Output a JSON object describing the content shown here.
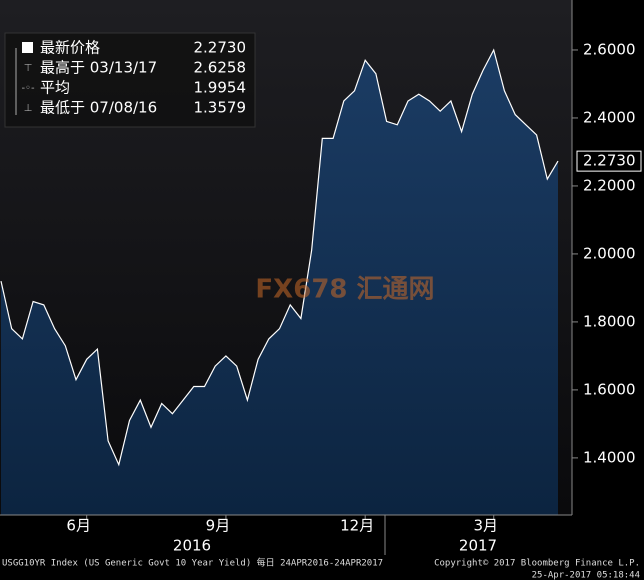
{
  "chart_data": {
    "type": "area",
    "series": [
      {
        "name": "USGG10YR Index",
        "color": "#ffffff",
        "fill": "#12305a",
        "values": [
          1.92,
          1.78,
          1.75,
          1.86,
          1.85,
          1.78,
          1.73,
          1.63,
          1.69,
          1.72,
          1.45,
          1.38,
          1.51,
          1.57,
          1.49,
          1.56,
          1.53,
          1.57,
          1.61,
          1.61,
          1.67,
          1.7,
          1.67,
          1.57,
          1.69,
          1.75,
          1.78,
          1.85,
          1.81,
          2.01,
          2.34,
          2.34,
          2.45,
          2.48,
          2.57,
          2.53,
          2.39,
          2.38,
          2.45,
          2.47,
          2.45,
          2.42,
          2.45,
          2.36,
          2.47,
          2.54,
          2.6,
          2.48,
          2.41,
          2.38,
          2.35,
          2.22,
          2.273
        ]
      }
    ],
    "categories": [
      null,
      null,
      null,
      null,
      null,
      null,
      null,
      null,
      "6月",
      null,
      null,
      null,
      null,
      null,
      null,
      null,
      null,
      null,
      null,
      null,
      null,
      "9月",
      null,
      null,
      null,
      null,
      null,
      null,
      null,
      null,
      null,
      null,
      null,
      null,
      "12月",
      null,
      null,
      null,
      null,
      null,
      null,
      null,
      null,
      null,
      null,
      null,
      "3月",
      null,
      null,
      null,
      null,
      null,
      null
    ],
    "year_labels": [
      "2016",
      "2017"
    ],
    "ylim": [
      1.232,
      2.747
    ],
    "yticks": [
      {
        "value": 1.4,
        "label": "1.4000"
      },
      {
        "value": 1.6,
        "label": "1.6000"
      },
      {
        "value": 1.8,
        "label": "1.8000"
      },
      {
        "value": 2.0,
        "label": "2.0000"
      },
      {
        "value": 2.2,
        "label": "2.2000"
      },
      {
        "value": 2.4,
        "label": "2.4000"
      },
      {
        "value": 2.6,
        "label": "2.6000"
      }
    ],
    "last_value_label": "2.2730",
    "legend": [
      {
        "label": "最新价格",
        "value": "2.2730"
      },
      {
        "label": "最高于 03/13/17",
        "value": "2.6258"
      },
      {
        "label": "平均",
        "value": "1.9954"
      },
      {
        "label": "最低于 07/08/16",
        "value": "1.3579"
      }
    ],
    "watermark": "FX678 汇通网",
    "footer_left": "USGG10YR Index (US Generic Govt 10 Year Yield)  每日 24APR2016-24APR2017",
    "footer_right": [
      "Copyright© 2017 Bloomberg Finance L.P.",
      "25-Apr-2017 05:18:44"
    ],
    "grid": false
  }
}
